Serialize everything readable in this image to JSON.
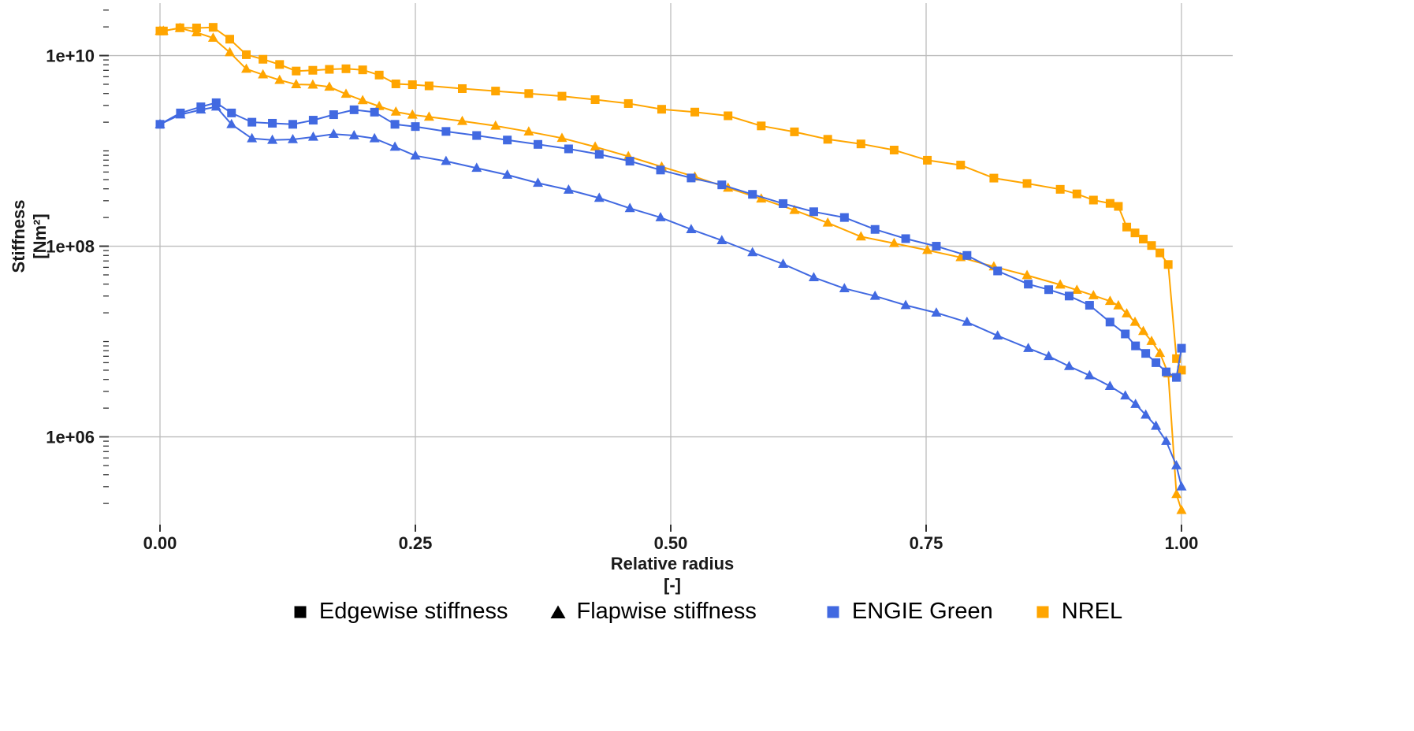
{
  "chart_data": {
    "type": "line",
    "title": "",
    "xlabel": "Relative radius",
    "xlabel_unit": "[-]",
    "ylabel": "Stiffness",
    "ylabel_unit": "[Nm²]",
    "x_axis": {
      "min": -0.05,
      "max": 1.05,
      "scale": "linear"
    },
    "y_axis": {
      "min": 120000.0,
      "max": 35000000000.0,
      "scale": "log10",
      "minor_ticks": true
    },
    "grid": true,
    "legend_position": "bottom",
    "colors": {
      "engie_green": "#4169E1",
      "nrel": "#FFA500",
      "grid": "#bdbdbd",
      "tick": "#333333",
      "text": "#1a1a1a"
    },
    "x_ticks": [
      {
        "value": 0.0,
        "label": "0.00"
      },
      {
        "value": 0.25,
        "label": "0.25"
      },
      {
        "value": 0.5,
        "label": "0.50"
      },
      {
        "value": 0.75,
        "label": "0.75"
      },
      {
        "value": 1.0,
        "label": "1.00"
      }
    ],
    "y_ticks": [
      {
        "value": 10000000000.0,
        "label": "1e+10"
      },
      {
        "value": 100000000.0,
        "label": "1e+08"
      },
      {
        "value": 1000000.0,
        "label": "1e+06"
      }
    ],
    "series": [
      {
        "name": "NREL — Edgewise stiffness",
        "group": "NREL",
        "style": "Edgewise stiffness",
        "marker": "square",
        "color": "#FFA500",
        "x": [
          0.0,
          0.0033,
          0.0195,
          0.0358,
          0.052,
          0.0683,
          0.0845,
          0.1008,
          0.1171,
          0.1333,
          0.1496,
          0.1658,
          0.1821,
          0.1984,
          0.2146,
          0.2309,
          0.2471,
          0.2634,
          0.2959,
          0.3285,
          0.361,
          0.3935,
          0.426,
          0.4585,
          0.4911,
          0.5236,
          0.5561,
          0.5886,
          0.6211,
          0.6537,
          0.6862,
          0.7187,
          0.7512,
          0.7838,
          0.8163,
          0.8488,
          0.8813,
          0.8976,
          0.9138,
          0.9301,
          0.9382,
          0.9464,
          0.9545,
          0.9626,
          0.9707,
          0.9789,
          0.987,
          0.9951,
          1.0
        ],
        "y": [
          18113000000.0,
          18113000000.0,
          19559000000.0,
          19498000000.0,
          19789000000.0,
          14859000000.0,
          10221000000.0,
          9144700000.0,
          8063200000.0,
          6884400000.0,
          7009100000.0,
          7167600000.0,
          7271700000.0,
          7081700000.0,
          6244500000.0,
          5048900000.0,
          4948400000.0,
          4808000000.0,
          4501400000.0,
          4244100000.0,
          3995500000.0,
          3750700000.0,
          3447100000.0,
          3139000000.0,
          2734200000.0,
          2554000000.0,
          2334000000.0,
          1828700000.0,
          1584100000.0,
          1323300000.0,
          1183200000.0,
          1020200000.0,
          797810000.0,
          709610000.0,
          518190000.0,
          454870000.0,
          395120000.0,
          353720000.0,
          304730000.0,
          281420000.0,
          261710000.0,
          158810000.0,
          137880000.0,
          118790000.0,
          101630000.0,
          85070000.0,
          64260000.0,
          6610000.0,
          5010000.0
        ]
      },
      {
        "name": "NREL — Flapwise stiffness",
        "group": "NREL",
        "style": "Flapwise stiffness",
        "marker": "triangle",
        "color": "#FFA500",
        "x": [
          0.0,
          0.0033,
          0.0195,
          0.0358,
          0.052,
          0.0683,
          0.0845,
          0.1008,
          0.1171,
          0.1333,
          0.1496,
          0.1658,
          0.1821,
          0.1984,
          0.2146,
          0.2309,
          0.2471,
          0.2634,
          0.2959,
          0.3285,
          0.361,
          0.3935,
          0.426,
          0.4585,
          0.4911,
          0.5236,
          0.5561,
          0.5886,
          0.6211,
          0.6537,
          0.6862,
          0.7187,
          0.7512,
          0.7838,
          0.8163,
          0.8488,
          0.8813,
          0.8976,
          0.9138,
          0.9301,
          0.9382,
          0.9464,
          0.9545,
          0.9626,
          0.9707,
          0.9789,
          0.987,
          0.9951,
          1.0
        ],
        "y": [
          18110000000.0,
          18110000000.0,
          19425000000.0,
          17456000000.0,
          15287000000.0,
          10782000000.0,
          7229700000.0,
          6309500000.0,
          5528300000.0,
          4980000000.0,
          4936800000.0,
          4691700000.0,
          3949500000.0,
          3386500000.0,
          2933700000.0,
          2568900000.0,
          2388600000.0,
          2271900000.0,
          2050000000.0,
          1828300000.0,
          1588700000.0,
          1361900000.0,
          1102400000.0,
          875800000.0,
          681300000.0,
          534720000.0,
          408900000.0,
          314540000.0,
          238630000.0,
          175880000.0,
          126010000.0,
          107260000.0,
          90880000.0,
          76310000.0,
          61050000.0,
          49480000.0,
          39360000.0,
          34670000.0,
          30410000.0,
          26520000.0,
          23840000.0,
          19630000.0,
          16000000.0,
          12830000.0,
          10080000.0,
          7550000.0,
          4600000.0,
          250000.0,
          170000.0
        ]
      },
      {
        "name": "ENGIE Green — Edgewise stiffness",
        "group": "ENGIE Green",
        "style": "Edgewise stiffness",
        "marker": "square",
        "color": "#4169E1",
        "x": [
          0.0,
          0.02,
          0.04,
          0.055,
          0.07,
          0.09,
          0.11,
          0.13,
          0.15,
          0.17,
          0.19,
          0.21,
          0.23,
          0.25,
          0.28,
          0.31,
          0.34,
          0.37,
          0.4,
          0.43,
          0.46,
          0.49,
          0.52,
          0.55,
          0.58,
          0.61,
          0.64,
          0.67,
          0.7,
          0.73,
          0.76,
          0.79,
          0.82,
          0.85,
          0.87,
          0.89,
          0.91,
          0.93,
          0.945,
          0.955,
          0.965,
          0.975,
          0.985,
          0.995,
          1.0
        ],
        "y": [
          1900000000.0,
          2500000000.0,
          2900000000.0,
          3200000000.0,
          2500000000.0,
          2000000000.0,
          1950000000.0,
          1900000000.0,
          2100000000.0,
          2400000000.0,
          2700000000.0,
          2550000000.0,
          1900000000.0,
          1800000000.0,
          1600000000.0,
          1450000000.0,
          1300000000.0,
          1170000000.0,
          1050000000.0,
          920000000.0,
          780000000.0,
          630000000.0,
          520000000.0,
          440000000.0,
          350000000.0,
          280000000.0,
          230000000.0,
          200000000.0,
          150000000.0,
          120000000.0,
          100000000.0,
          80000000.0,
          55000000.0,
          40000000.0,
          35000000.0,
          30000000.0,
          24000000.0,
          16000000.0,
          12000000.0,
          9000000.0,
          7500000.0,
          6000000.0,
          4800000.0,
          4200000.0,
          8500000.0
        ]
      },
      {
        "name": "ENGIE Green — Flapwise stiffness",
        "group": "ENGIE Green",
        "style": "Flapwise stiffness",
        "marker": "triangle",
        "color": "#4169E1",
        "x": [
          0.0,
          0.02,
          0.04,
          0.055,
          0.07,
          0.09,
          0.11,
          0.13,
          0.15,
          0.17,
          0.19,
          0.21,
          0.23,
          0.25,
          0.28,
          0.31,
          0.34,
          0.37,
          0.4,
          0.43,
          0.46,
          0.49,
          0.52,
          0.55,
          0.58,
          0.61,
          0.64,
          0.67,
          0.7,
          0.73,
          0.76,
          0.79,
          0.82,
          0.85,
          0.87,
          0.89,
          0.91,
          0.93,
          0.945,
          0.955,
          0.965,
          0.975,
          0.985,
          0.995,
          1.0
        ],
        "y": [
          1900000000.0,
          2400000000.0,
          2700000000.0,
          2900000000.0,
          1900000000.0,
          1350000000.0,
          1300000000.0,
          1320000000.0,
          1400000000.0,
          1500000000.0,
          1450000000.0,
          1350000000.0,
          1100000000.0,
          890000000.0,
          780000000.0,
          660000000.0,
          560000000.0,
          460000000.0,
          390000000.0,
          320000000.0,
          250000000.0,
          200000000.0,
          150000000.0,
          115000000.0,
          86000000.0,
          65000000.0,
          47000000.0,
          36000000.0,
          30000000.0,
          24000000.0,
          20000000.0,
          16000000.0,
          11500000.0,
          8500000.0,
          7000000.0,
          5500000.0,
          4400000.0,
          3400000.0,
          2700000.0,
          2200000.0,
          1700000.0,
          1300000.0,
          900000.0,
          500000.0,
          300000.0
        ]
      }
    ],
    "legend": {
      "style_items": [
        {
          "label": "Edgewise stiffness",
          "marker": "square",
          "color": "#000000"
        },
        {
          "label": "Flapwise stiffness",
          "marker": "triangle",
          "color": "#000000"
        }
      ],
      "color_items": [
        {
          "label": "ENGIE Green",
          "marker": "square",
          "color": "#4169E1"
        },
        {
          "label": "NREL",
          "marker": "square",
          "color": "#FFA500"
        }
      ]
    }
  }
}
